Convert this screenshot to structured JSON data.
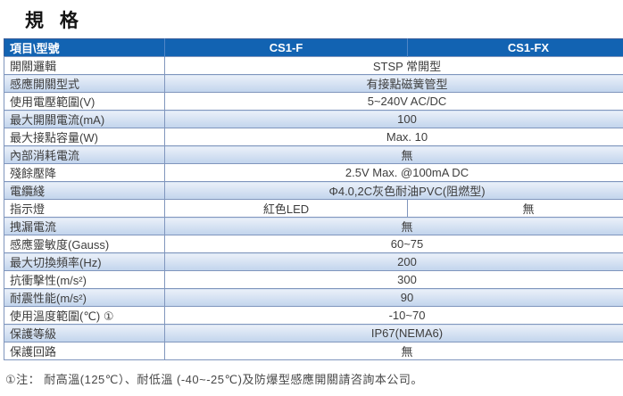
{
  "title": "規  格",
  "colors": {
    "header_bg": "#1263b2",
    "header_text": "#ffffff",
    "row_alt_top": "#eaf0f9",
    "row_alt_bottom": "#c2d4ec",
    "grid_line": "#8096bd"
  },
  "table": {
    "header": {
      "col_item": "項目\\型號",
      "col_f": "CS1-F",
      "col_fx": "CS1-FX"
    },
    "rows": [
      {
        "label": "開關邏輯",
        "value": "STSP 常開型"
      },
      {
        "label": "感應開關型式",
        "value": "有接點磁簧管型"
      },
      {
        "label": "使用電壓範圍(V)",
        "value": "5~240V AC/DC"
      },
      {
        "label": "最大開關電流(mA)",
        "value": "100"
      },
      {
        "label": "最大接點容量(W)",
        "value": "Max. 10"
      },
      {
        "label": "內部消耗電流",
        "value": "無"
      },
      {
        "label": "殘餘壓降",
        "value": "2.5V Max. @100mA DC"
      },
      {
        "label": "電纜綫",
        "value": "Φ4.0,2C灰色耐油PVC(阻燃型)"
      },
      {
        "label": "指示燈",
        "value_f": "紅色LED",
        "value_fx": "無"
      },
      {
        "label": "拽漏電流",
        "value": "無"
      },
      {
        "label": "感應靈敏度(Gauss)",
        "value": "60~75"
      },
      {
        "label": "最大切換頻率(Hz)",
        "value": "200"
      },
      {
        "label": "抗衝擊性(m/s²)",
        "value": "300"
      },
      {
        "label": "耐震性能(m/s²)",
        "value": "90"
      },
      {
        "label": "使用溫度範圍(℃) ①",
        "value": "-10~70"
      },
      {
        "label": "保護等級",
        "value": "IP67(NEMA6)"
      },
      {
        "label": "保護回路",
        "value": "無"
      }
    ]
  },
  "note": "①注： 耐高溫(125℃）、耐低溫 (-40~-25℃)及防爆型感應開關請咨詢本公司。"
}
